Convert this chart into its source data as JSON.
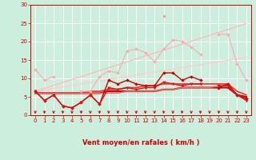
{
  "x": [
    0,
    1,
    2,
    3,
    4,
    5,
    6,
    7,
    8,
    9,
    10,
    11,
    12,
    13,
    14,
    15,
    16,
    17,
    18,
    19,
    20,
    21,
    22,
    23
  ],
  "series": [
    {
      "name": "light_scattered",
      "color": "#ffaaaa",
      "lw": 0.8,
      "marker": "D",
      "ms": 2.0,
      "y": [
        12.5,
        9.5,
        10.5,
        null,
        null,
        6.5,
        6.5,
        10.5,
        12.0,
        11.5,
        17.5,
        18.0,
        17.0,
        14.5,
        18.0,
        20.5,
        20.0,
        18.5,
        16.5,
        null,
        22.0,
        22.0,
        14.0,
        9.5
      ]
    },
    {
      "name": "diag_upper",
      "color": "#ffbbbb",
      "lw": 1.0,
      "marker": null,
      "ms": 0,
      "y": [
        6.5,
        7.3,
        8.1,
        8.9,
        9.7,
        10.5,
        11.3,
        12.1,
        12.9,
        13.7,
        14.5,
        15.3,
        16.1,
        16.9,
        17.7,
        18.5,
        19.3,
        20.1,
        20.9,
        21.7,
        22.5,
        23.3,
        24.1,
        24.9
      ]
    },
    {
      "name": "diag_lower",
      "color": "#ffcccc",
      "lw": 1.0,
      "marker": null,
      "ms": 0,
      "y": [
        6.5,
        6.9,
        7.3,
        7.7,
        8.1,
        8.5,
        8.9,
        9.3,
        9.7,
        10.1,
        10.5,
        10.9,
        11.3,
        11.7,
        12.1,
        12.5,
        12.9,
        13.3,
        13.7,
        14.1,
        14.5,
        14.9,
        15.3,
        15.7
      ]
    },
    {
      "name": "peak_line",
      "color": "#ff9999",
      "lw": 0.8,
      "marker": "D",
      "ms": 2.0,
      "y": [
        6.5,
        null,
        null,
        null,
        null,
        null,
        null,
        null,
        null,
        null,
        null,
        null,
        null,
        null,
        27.0,
        null,
        null,
        null,
        null,
        null,
        null,
        null,
        null,
        null
      ]
    },
    {
      "name": "dark_upper",
      "color": "#cc0000",
      "lw": 1.0,
      "marker": "D",
      "ms": 2.0,
      "y": [
        6.5,
        4.0,
        5.5,
        2.5,
        2.0,
        3.5,
        5.5,
        3.0,
        9.5,
        8.5,
        9.5,
        8.5,
        8.0,
        8.0,
        11.5,
        11.5,
        9.5,
        10.5,
        9.5,
        null,
        7.5,
        8.5,
        5.5,
        4.5
      ]
    },
    {
      "name": "dark_lower",
      "color": "#dd1111",
      "lw": 1.0,
      "marker": "v",
      "ms": 2.5,
      "y": [
        6.5,
        4.0,
        5.5,
        2.5,
        2.0,
        3.5,
        5.5,
        3.0,
        7.5,
        7.0,
        7.5,
        7.0,
        7.5,
        7.5,
        9.0,
        8.5,
        8.0,
        8.5,
        8.5,
        null,
        8.0,
        8.0,
        5.5,
        4.0
      ]
    },
    {
      "name": "flat_top",
      "color": "#ee3333",
      "lw": 1.2,
      "marker": null,
      "ms": 0,
      "y": [
        6.0,
        6.0,
        6.0,
        6.0,
        6.0,
        6.0,
        6.5,
        6.5,
        7.0,
        7.0,
        7.5,
        7.5,
        8.0,
        8.0,
        8.5,
        8.5,
        8.5,
        8.5,
        8.5,
        8.5,
        8.5,
        8.5,
        6.5,
        5.5
      ]
    },
    {
      "name": "flat_mid",
      "color": "#cc0000",
      "lw": 1.5,
      "marker": null,
      "ms": 0,
      "y": [
        6.0,
        6.0,
        6.0,
        6.0,
        6.0,
        6.0,
        6.0,
        6.0,
        6.5,
        6.5,
        6.5,
        6.5,
        6.5,
        6.5,
        7.0,
        7.0,
        7.5,
        7.5,
        7.5,
        7.5,
        7.5,
        7.5,
        5.5,
        5.0
      ]
    },
    {
      "name": "flat_bottom",
      "color": "#ff6666",
      "lw": 1.0,
      "marker": null,
      "ms": 0,
      "y": [
        6.0,
        6.0,
        6.0,
        6.0,
        6.0,
        6.0,
        6.0,
        6.0,
        6.0,
        6.0,
        6.5,
        6.5,
        6.5,
        6.5,
        7.0,
        7.0,
        7.5,
        7.5,
        7.5,
        7.5,
        8.0,
        8.0,
        5.5,
        4.5
      ]
    }
  ],
  "xlabel": "Vent moyen/en rafales ( km/h )",
  "ylim": [
    0,
    30
  ],
  "xlim": [
    -0.5,
    23.5
  ],
  "yticks": [
    0,
    5,
    10,
    15,
    20,
    25,
    30
  ],
  "xticks": [
    0,
    1,
    2,
    3,
    4,
    5,
    6,
    7,
    8,
    9,
    10,
    11,
    12,
    13,
    14,
    15,
    16,
    17,
    18,
    19,
    20,
    21,
    22,
    23
  ],
  "bg_color": "#cceedd",
  "grid_color": "#ffffff",
  "axis_color": "#cc0000",
  "tick_color": "#cc0000",
  "label_color": "#cc0000",
  "arrow_color": "#cc0000"
}
